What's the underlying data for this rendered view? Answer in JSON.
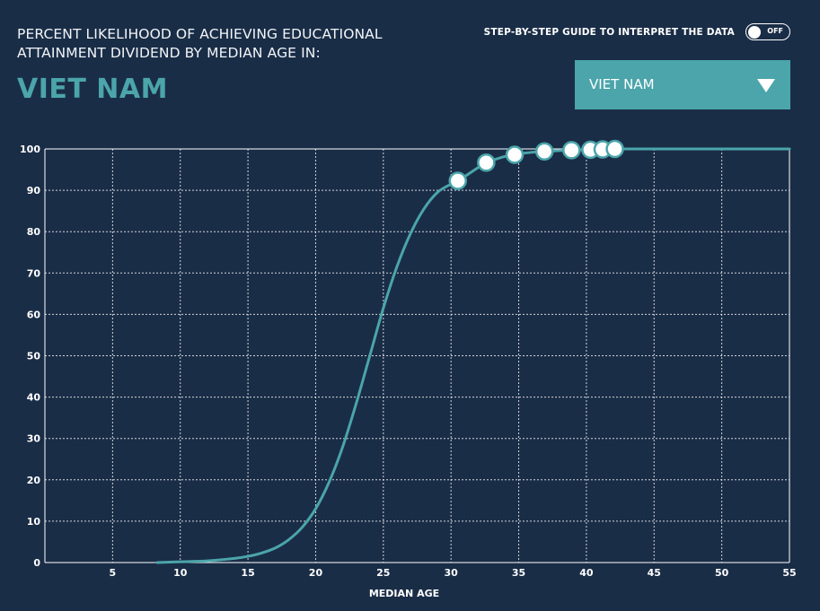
{
  "header": {
    "title_line1": "PERCENT LIKELIHOOD OF ACHIEVING EDUCATIONAL",
    "title_line2": "ATTAINMENT DIVIDEND BY MEDIAN AGE IN:",
    "country": "VIET NAM"
  },
  "guide": {
    "label": "STEP-BY-STEP GUIDE TO INTERPRET THE DATA",
    "toggle_state": "OFF"
  },
  "dropdown": {
    "selected": "VIET NAM"
  },
  "colors": {
    "background": "#1a2d47",
    "accent": "#4ba5aa",
    "line": "#4ba5aa",
    "grid": "#ffffff",
    "marker_fill": "#ffffff",
    "marker_stroke": "#4ba5aa"
  },
  "chart_data": {
    "type": "line",
    "title": "PERCENT LIKELIHOOD OF ACHIEVING EDUCATIONAL ATTAINMENT DIVIDEND BY MEDIAN AGE IN: VIET NAM",
    "xlabel": "MEDIAN AGE",
    "ylabel": "",
    "xlim": [
      0,
      55
    ],
    "ylim": [
      0,
      100
    ],
    "xticks": [
      5,
      10,
      15,
      20,
      25,
      30,
      35,
      40,
      45,
      50,
      55
    ],
    "yticks": [
      0,
      10,
      20,
      30,
      40,
      50,
      60,
      70,
      80,
      90,
      100
    ],
    "grid": true,
    "series": [
      {
        "name": "likelihood",
        "x": [
          8.3,
          10,
          12,
          14,
          15,
          16,
          17,
          18,
          19,
          20,
          21,
          22,
          23,
          24,
          25,
          26,
          27,
          28,
          29,
          30,
          30.5,
          31,
          32,
          32.6,
          33,
          34,
          34.7,
          35,
          36,
          36.9,
          38,
          39,
          40,
          40.3,
          41,
          41.2,
          42,
          42.1,
          44,
          46,
          50,
          55
        ],
        "y": [
          0,
          0.2,
          0.4,
          1.0,
          1.5,
          2.3,
          3.5,
          5.5,
          8.5,
          13,
          19.5,
          28,
          38.5,
          50,
          61.5,
          71.5,
          79.5,
          85.5,
          89.5,
          91.5,
          92.3,
          93.3,
          95.5,
          96.7,
          97.2,
          98.2,
          98.6,
          98.8,
          99.2,
          99.4,
          99.6,
          99.7,
          99.8,
          99.8,
          99.9,
          99.9,
          99.95,
          100,
          100,
          100,
          100,
          100
        ]
      }
    ],
    "markers": {
      "x": [
        30.5,
        32.6,
        34.7,
        36.9,
        38.9,
        40.3,
        41.2,
        42.1
      ],
      "y": [
        92.3,
        96.7,
        98.6,
        99.4,
        99.7,
        99.8,
        99.9,
        100
      ]
    }
  }
}
